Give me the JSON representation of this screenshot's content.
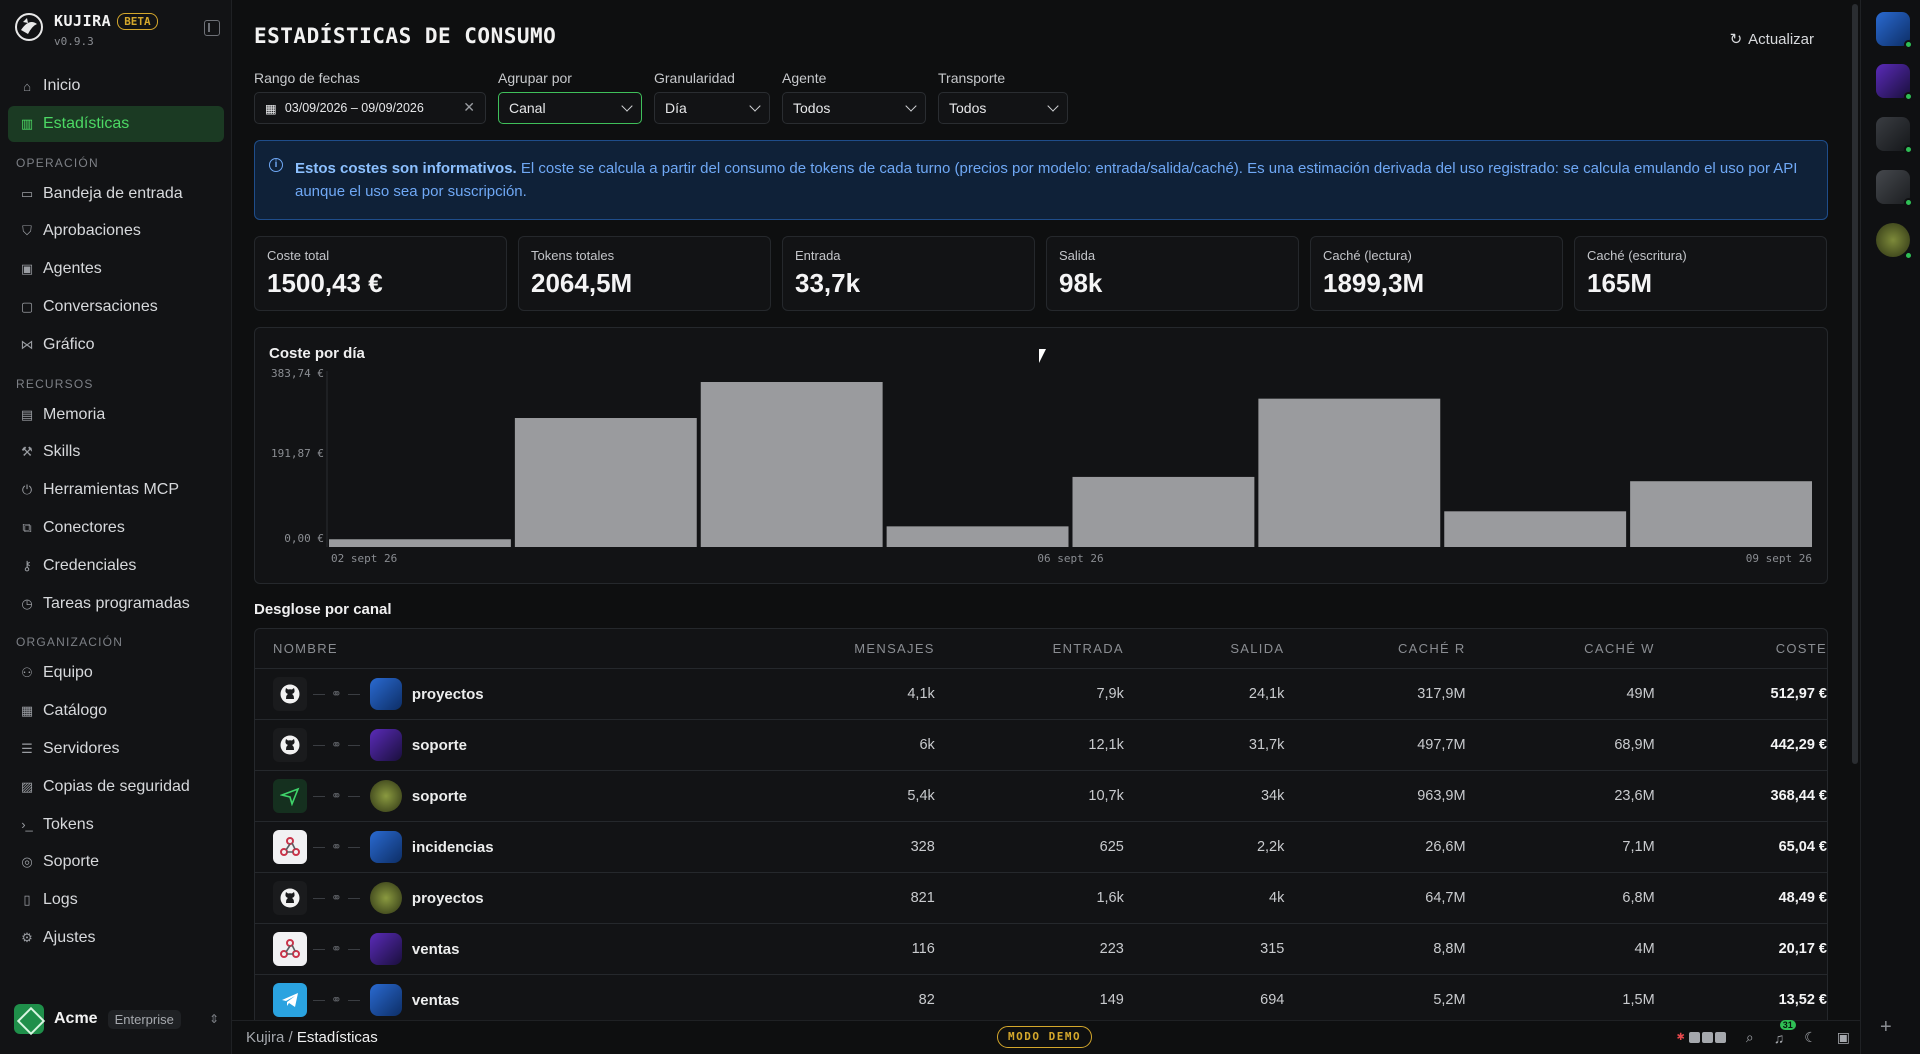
{
  "brand": {
    "name": "KUJIRA",
    "badge": "BETA",
    "version": "v0.9.3"
  },
  "nav": {
    "primary": [
      {
        "label": "Inicio",
        "icon": "home-icon"
      },
      {
        "label": "Estadísticas",
        "icon": "chart-icon",
        "active": true
      }
    ],
    "sections": [
      {
        "title": "OPERACIÓN",
        "items": [
          "Bandeja de entrada",
          "Aprobaciones",
          "Agentes",
          "Conversaciones",
          "Gráfico"
        ]
      },
      {
        "title": "RECURSOS",
        "items": [
          "Memoria",
          "Skills",
          "Herramientas MCP",
          "Conectores",
          "Credenciales",
          "Tareas programadas"
        ]
      },
      {
        "title": "ORGANIZACIÓN",
        "items": [
          "Equipo",
          "Catálogo",
          "Servidores",
          "Copias de seguridad",
          "Tokens",
          "Soporte",
          "Logs",
          "Ajustes"
        ]
      }
    ]
  },
  "org": {
    "name": "Acme",
    "plan": "Enterprise"
  },
  "page": {
    "title": "ESTADÍSTICAS DE CONSUMO",
    "refresh_label": "Actualizar"
  },
  "filters": {
    "date_label": "Rango de fechas",
    "date_value": "03/09/2026 – 09/09/2026",
    "group_label": "Agrupar por",
    "group_value": "Canal",
    "gran_label": "Granularidad",
    "gran_value": "Día",
    "agent_label": "Agente",
    "agent_value": "Todos",
    "transport_label": "Transporte",
    "transport_value": "Todos"
  },
  "info": {
    "bold": "Estos costes son informativos.",
    "text": " El coste se calcula a partir del consumo de tokens de cada turno (precios por modelo: entrada/salida/caché). Es una estimación derivada del uso registrado: se calcula emulando el uso por API aunque el uso sea por suscripción."
  },
  "stats": [
    {
      "label": "Coste total",
      "value": "1500,43 €"
    },
    {
      "label": "Tokens totales",
      "value": "2064,5M"
    },
    {
      "label": "Entrada",
      "value": "33,7k"
    },
    {
      "label": "Salida",
      "value": "98k"
    },
    {
      "label": "Caché (lectura)",
      "value": "1899,3M"
    },
    {
      "label": "Caché (escritura)",
      "value": "165M"
    }
  ],
  "chart_data": {
    "type": "bar",
    "title": "Coste por día",
    "y_ticks": [
      "383,74 €",
      "191,87 €",
      "0,00 €"
    ],
    "ylim": [
      0,
      383.74
    ],
    "x_ticks": [
      "02 sept 26",
      "06 sept 26",
      "09 sept 26"
    ],
    "values": [
      18,
      300,
      383.74,
      48,
      163,
      345,
      83,
      153
    ],
    "bar_color": "#9a9b9e"
  },
  "table": {
    "title": "Desglose por canal",
    "columns": [
      "NOMBRE",
      "MENSAJES",
      "ENTRADA",
      "SALIDA",
      "CACHÉ R",
      "CACHÉ W",
      "COSTE"
    ],
    "rows": [
      {
        "channel": "github",
        "agent": "robot-blue",
        "name": "proyectos",
        "mensajes": "4,1k",
        "entrada": "7,9k",
        "salida": "24,1k",
        "cache_r": "317,9M",
        "cache_w": "49M",
        "coste": "512,97 €"
      },
      {
        "channel": "github",
        "agent": "robot-purple",
        "name": "soporte",
        "mensajes": "6k",
        "entrada": "12,1k",
        "salida": "31,7k",
        "cache_r": "497,7M",
        "cache_w": "68,9M",
        "coste": "442,29 €"
      },
      {
        "channel": "send",
        "agent": "robot-olive",
        "name": "soporte",
        "mensajes": "5,4k",
        "entrada": "10,7k",
        "salida": "34k",
        "cache_r": "963,9M",
        "cache_w": "23,6M",
        "coste": "368,44 €"
      },
      {
        "channel": "webhook",
        "agent": "robot-blue",
        "name": "incidencias",
        "mensajes": "328",
        "entrada": "625",
        "salida": "2,2k",
        "cache_r": "26,6M",
        "cache_w": "7,1M",
        "coste": "65,04 €"
      },
      {
        "channel": "github",
        "agent": "robot-olive",
        "name": "proyectos",
        "mensajes": "821",
        "entrada": "1,6k",
        "salida": "4k",
        "cache_r": "64,7M",
        "cache_w": "6,8M",
        "coste": "48,49 €"
      },
      {
        "channel": "webhook",
        "agent": "robot-purple",
        "name": "ventas",
        "mensajes": "116",
        "entrada": "223",
        "salida": "315",
        "cache_r": "8,8M",
        "cache_w": "4M",
        "coste": "20,17 €"
      },
      {
        "channel": "telegram",
        "agent": "robot-blue",
        "name": "ventas",
        "mensajes": "82",
        "entrada": "149",
        "salida": "694",
        "cache_r": "5,2M",
        "cache_w": "1,5M",
        "coste": "13,52 €"
      }
    ]
  },
  "bottom": {
    "crumb_root": "Kujira",
    "crumb_current": "Estadísticas",
    "demo_label": "MODO DEMO",
    "notif_count": "31"
  }
}
